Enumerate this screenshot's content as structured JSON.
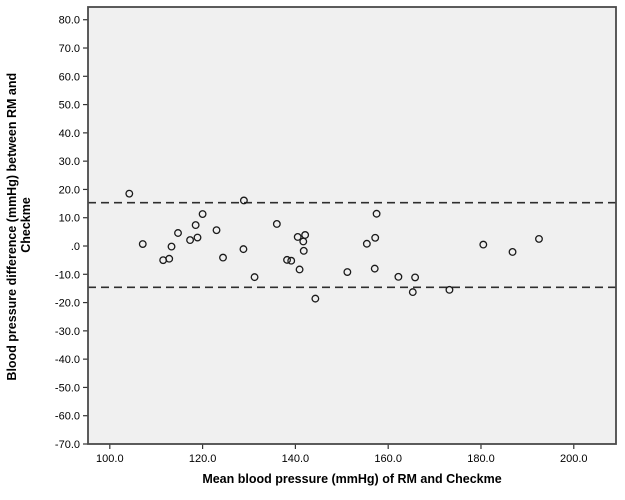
{
  "chart_data": {
    "type": "scatter",
    "title": "",
    "xlabel": "Mean blood pressure (mmHg) of RM and Checkme",
    "ylabel_line1": "Blood pressure difference (mmHg) between RM and",
    "ylabel_line2": "Checkme",
    "xlim": [
      95.3,
      209.1
    ],
    "ylim": [
      -70.0,
      84.5
    ],
    "grid": false,
    "legend": false,
    "colors": {
      "plot_background": "#f0f0f0",
      "frame": "#4a4a4a",
      "tick": "#333333",
      "marker_stroke": "#1a1a1a",
      "limit_line": "#2e2e2e"
    },
    "marker": {
      "shape": "open-circle",
      "radius": 3.3,
      "stroke_width": 1.3,
      "fill": "none"
    },
    "x_ticks": [
      {
        "v": 100,
        "label": "100.0"
      },
      {
        "v": 120,
        "label": "120.0"
      },
      {
        "v": 140,
        "label": "140.0"
      },
      {
        "v": 160,
        "label": "160.0"
      },
      {
        "v": 180,
        "label": "180.0"
      },
      {
        "v": 200,
        "label": "200.0"
      }
    ],
    "y_ticks": [
      {
        "v": 80,
        "label": "80.0"
      },
      {
        "v": 70,
        "label": "70.0"
      },
      {
        "v": 60,
        "label": "60.0"
      },
      {
        "v": 50,
        "label": "50.0"
      },
      {
        "v": 40,
        "label": "40.0"
      },
      {
        "v": 30,
        "label": "30.0"
      },
      {
        "v": 20,
        "label": "20.0"
      },
      {
        "v": 10,
        "label": "10.0"
      },
      {
        "v": 0,
        "label": ".0"
      },
      {
        "v": -10,
        "label": "-10.0"
      },
      {
        "v": -20,
        "label": "-20.0"
      },
      {
        "v": -30,
        "label": "-30.0"
      },
      {
        "v": -40,
        "label": "-40.0"
      },
      {
        "v": -50,
        "label": "-50.0"
      },
      {
        "v": -60,
        "label": "-60.0"
      },
      {
        "v": -70,
        "label": "-70.0"
      }
    ],
    "limit_lines": [
      {
        "y": 15.3,
        "style": "dashed"
      },
      {
        "y": -14.6,
        "style": "dashed"
      }
    ],
    "points": [
      [
        104.2,
        18.5
      ],
      [
        107.1,
        0.7
      ],
      [
        111.5,
        -5.0
      ],
      [
        112.8,
        -4.5
      ],
      [
        113.3,
        -0.2
      ],
      [
        114.7,
        4.6
      ],
      [
        117.3,
        2.1
      ],
      [
        118.9,
        3.0
      ],
      [
        118.5,
        7.4
      ],
      [
        120.0,
        11.3
      ],
      [
        123.0,
        5.6
      ],
      [
        124.4,
        -4.1
      ],
      [
        128.8,
        -1.1
      ],
      [
        131.2,
        -11.0
      ],
      [
        128.9,
        16.1
      ],
      [
        136.0,
        7.8
      ],
      [
        140.5,
        3.2
      ],
      [
        142.1,
        3.9
      ],
      [
        141.7,
        1.6
      ],
      [
        141.8,
        -1.7
      ],
      [
        138.2,
        -4.9
      ],
      [
        139.1,
        -5.2
      ],
      [
        140.9,
        -8.3
      ],
      [
        144.3,
        -18.6
      ],
      [
        151.2,
        -9.2
      ],
      [
        155.4,
        0.8
      ],
      [
        157.2,
        2.9
      ],
      [
        157.5,
        11.4
      ],
      [
        157.1,
        -8.0
      ],
      [
        162.2,
        -10.9
      ],
      [
        165.8,
        -11.1
      ],
      [
        165.3,
        -16.3
      ],
      [
        173.2,
        -15.5
      ],
      [
        180.5,
        0.5
      ],
      [
        186.8,
        -2.1
      ],
      [
        192.5,
        2.5
      ]
    ]
  }
}
